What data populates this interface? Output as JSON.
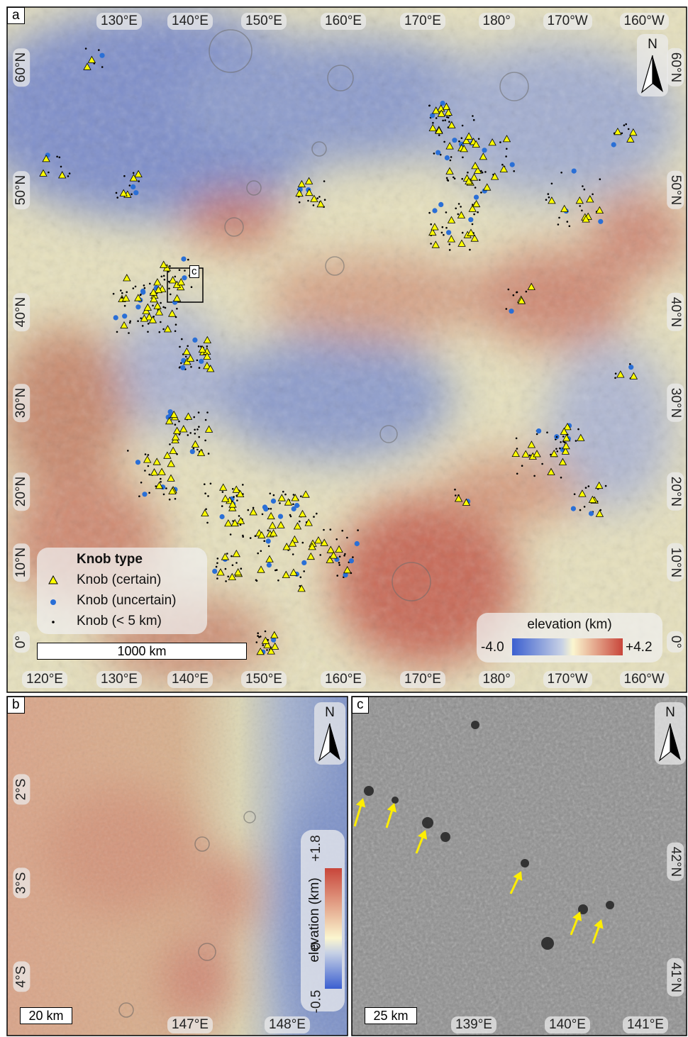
{
  "panel_a": {
    "label": "a",
    "top_longitudes": [
      "130°E",
      "140°E",
      "150°E",
      "160°E",
      "170°E",
      "180°",
      "170°W",
      "160°W"
    ],
    "bottom_longitudes": [
      "120°E",
      "130°E",
      "140°E",
      "150°E",
      "160°E",
      "170°E",
      "180°",
      "170°W",
      "160°W"
    ],
    "left_latitudes": [
      "60°N",
      "50°N",
      "40°N",
      "30°N",
      "20°N",
      "10°N",
      "0°"
    ],
    "right_latitudes": [
      "60°N",
      "50°N",
      "40°N",
      "30°N",
      "20°N",
      "10°N",
      "0°"
    ],
    "north": "N",
    "inset_label": "c",
    "legend": {
      "title": "Knob type",
      "items": [
        "Knob (certain)",
        "Knob (uncertain)",
        "Knob (< 5 km)"
      ]
    },
    "scale_bar": "1000 km",
    "colorbar": {
      "title": "elevation (km)",
      "min": "-4.0",
      "max": "+4.2"
    }
  },
  "panel_b": {
    "label": "b",
    "north": "N",
    "latitudes": [
      "2°S",
      "3°S",
      "4°S"
    ],
    "longitudes": [
      "147°E",
      "148°E"
    ],
    "scale_bar": "20 km",
    "colorbar": {
      "title": "elevation (km)",
      "max": "+1.8",
      "mid": "0",
      "min": "-0.5"
    }
  },
  "panel_c": {
    "label": "c",
    "north": "N",
    "latitudes": [
      "42°N",
      "41°N"
    ],
    "longitudes": [
      "139°E",
      "140°E",
      "141°E"
    ],
    "scale_bar": "25 km"
  }
}
